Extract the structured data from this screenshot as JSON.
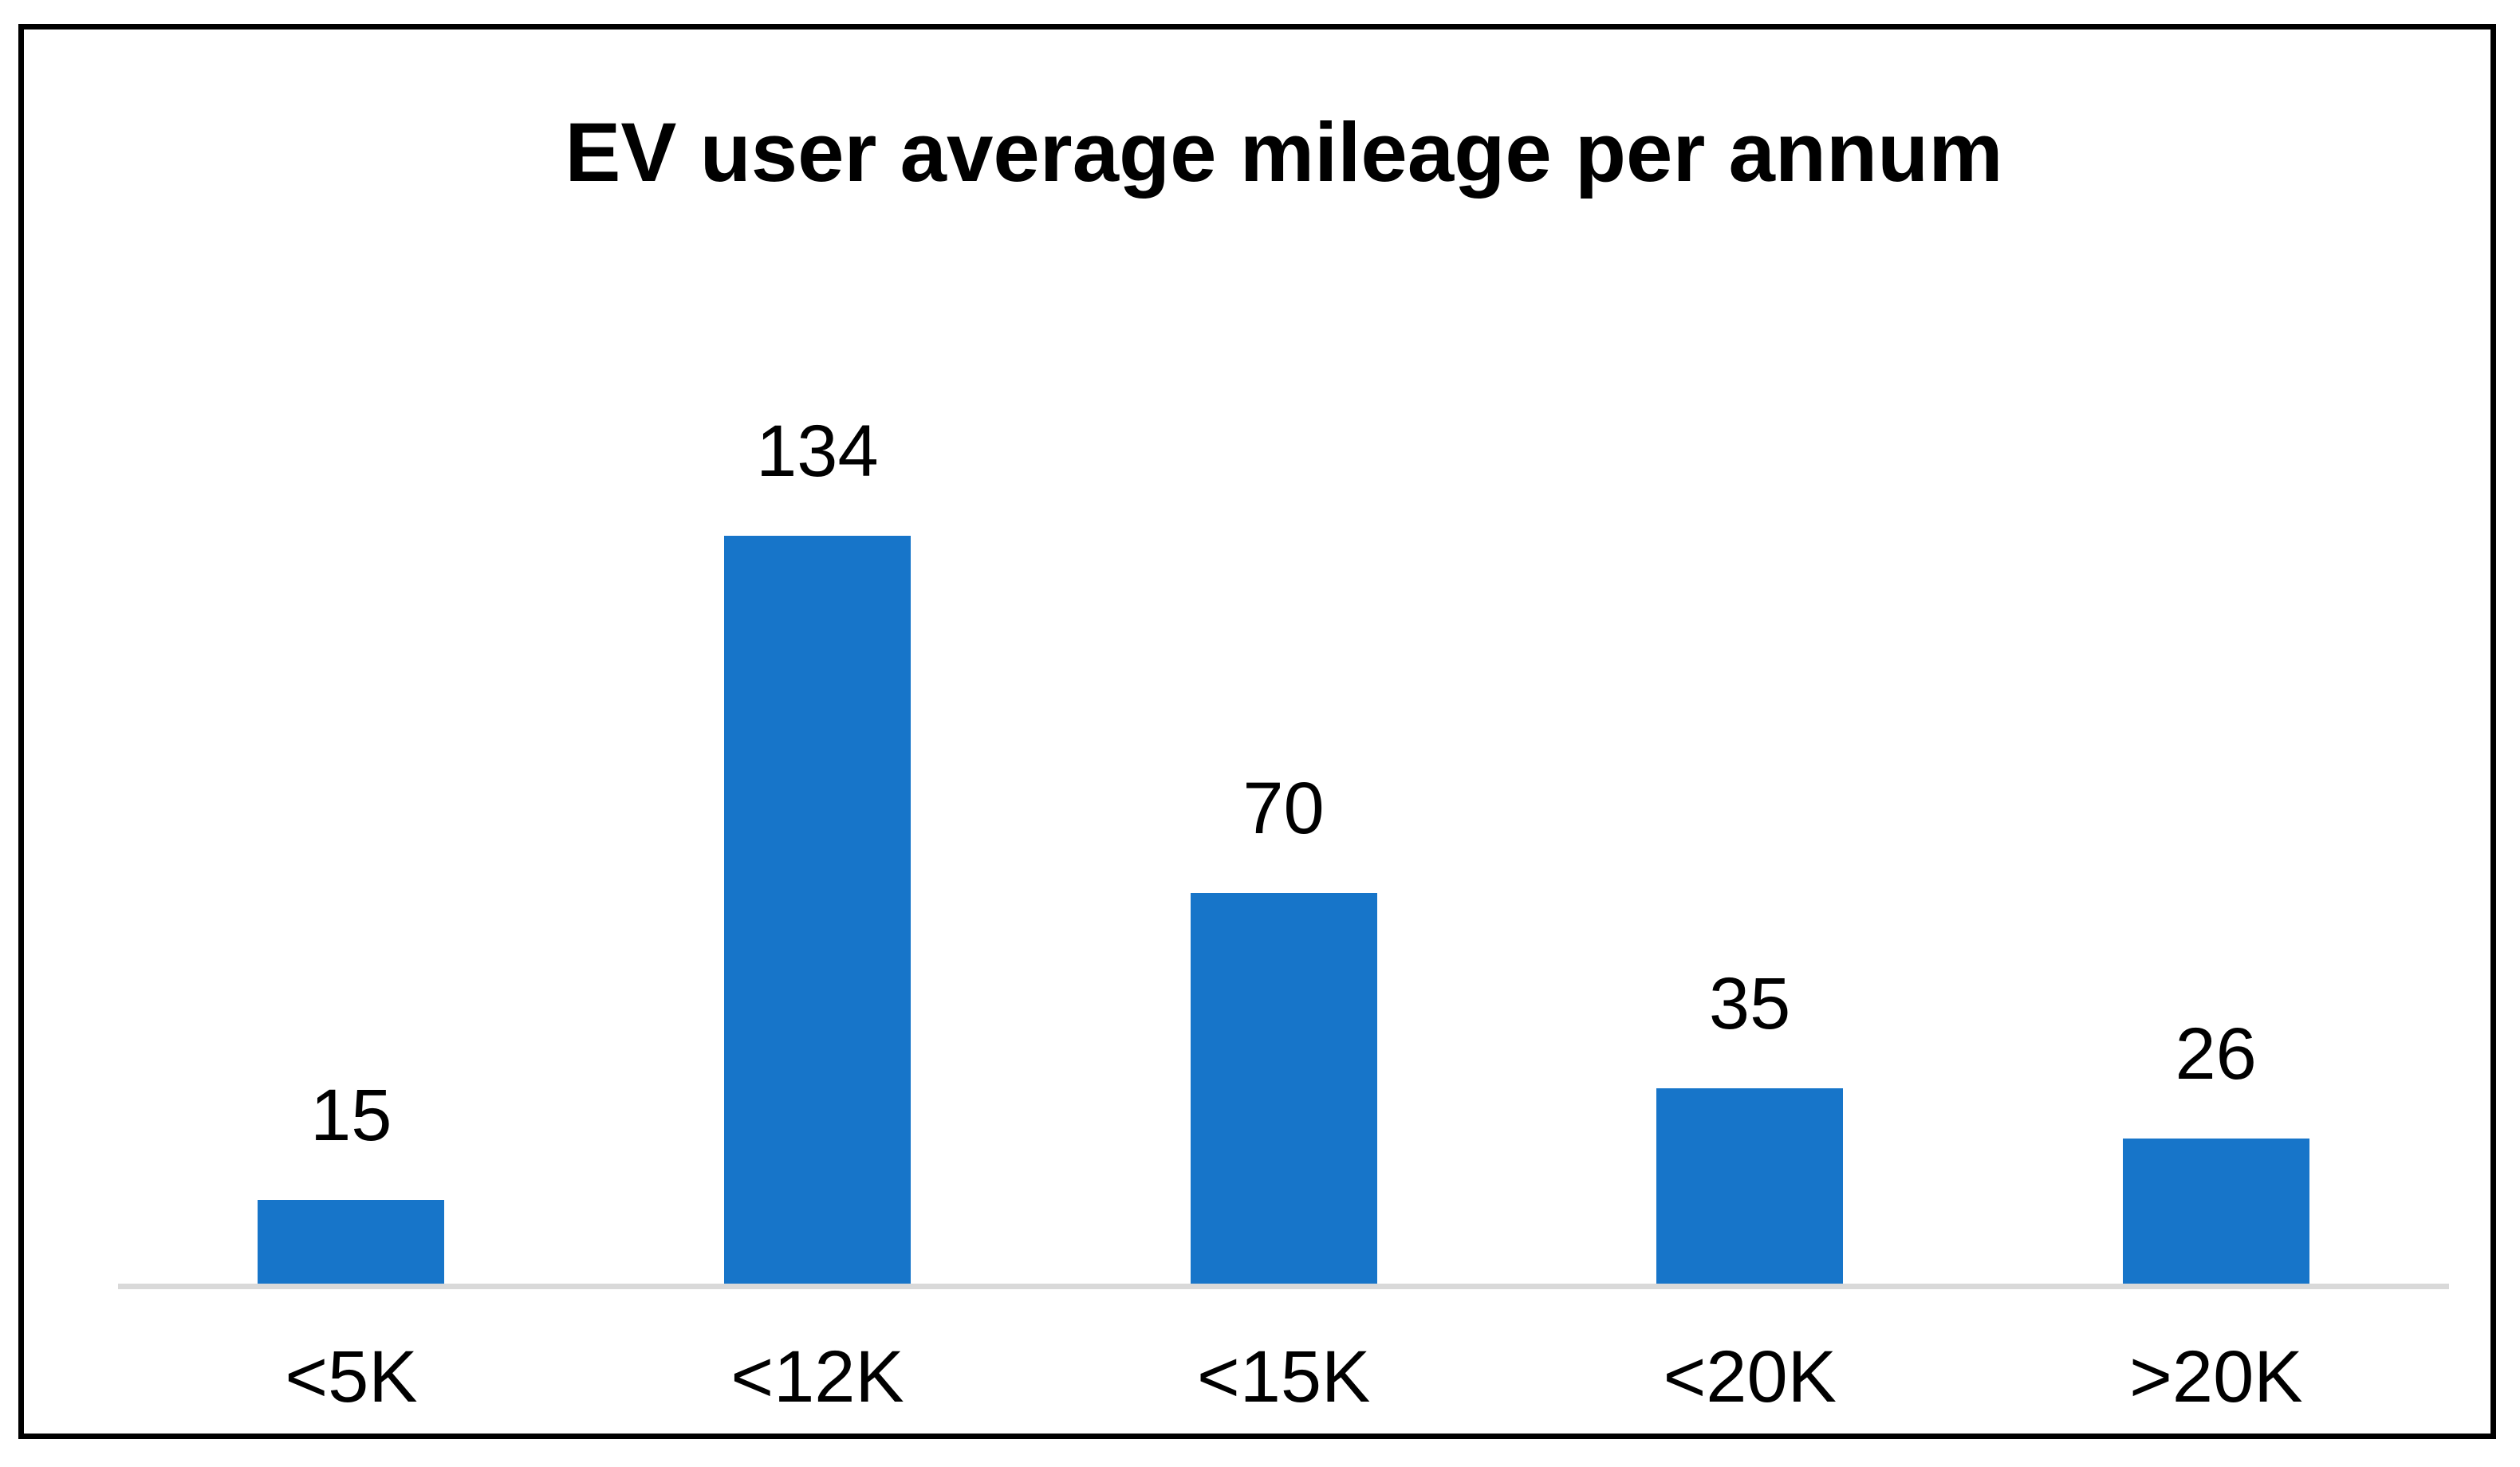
{
  "chart_data": {
    "type": "bar",
    "title": "EV user average mileage per annum",
    "categories": [
      "<5K",
      "<12K",
      "<15K",
      "<20K",
      ">20K"
    ],
    "values": [
      15,
      134,
      70,
      35,
      26
    ],
    "data_labels": [
      15,
      134,
      70,
      35,
      26
    ],
    "xlabel": "",
    "ylabel": "",
    "ylim": [
      0,
      168
    ],
    "grid": false,
    "legend": false,
    "y_axis_visible": false,
    "bar_color": "#1775c9",
    "axis_line_color": "#d9d9d9",
    "title_color": "#000000",
    "label_color": "#000000",
    "frame_border_color": "#000000",
    "background_color": "#ffffff"
  }
}
